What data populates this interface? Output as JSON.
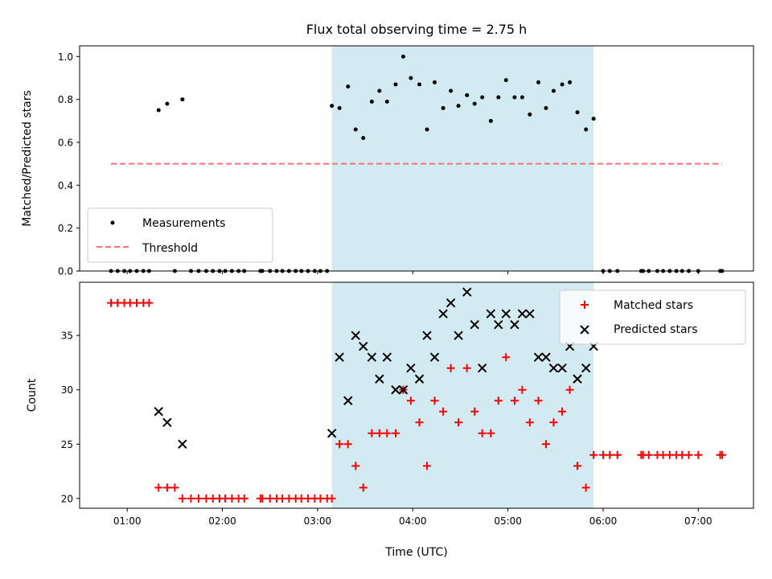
{
  "chart_data": [
    {
      "type": "scatter",
      "title": "Flux total observing time = 2.75 h",
      "ylabel": "Matched/Predicted stars",
      "xlabel": "",
      "x_unit": "hours (UTC)",
      "xlim": [
        0.5,
        7.58
      ],
      "ylim": [
        0.0,
        1.05
      ],
      "yticks": [
        0.0,
        0.2,
        0.4,
        0.6,
        0.8,
        1.0
      ],
      "ytick_labels": [
        "0.0",
        "0.2",
        "0.4",
        "0.6",
        "0.8",
        "1.0"
      ],
      "grid": false,
      "legend": "lower-left",
      "shaded_region": [
        3.15,
        5.9
      ],
      "shade_color": "#add8e6",
      "series": [
        {
          "name": "Measurements",
          "color": "#000000",
          "marker": "dot",
          "x": [
            0.83,
            0.9,
            0.97,
            1.03,
            1.1,
            1.17,
            1.23,
            1.33,
            1.42,
            1.5,
            1.58,
            1.67,
            1.75,
            1.83,
            1.9,
            1.97,
            2.03,
            2.1,
            2.17,
            2.23,
            2.4,
            2.42,
            2.5,
            2.57,
            2.63,
            2.7,
            2.77,
            2.83,
            2.9,
            2.97,
            3.03,
            3.1,
            3.15,
            3.23,
            3.32,
            3.4,
            3.48,
            3.57,
            3.65,
            3.73,
            3.82,
            3.9,
            3.98,
            4.07,
            4.15,
            4.23,
            4.32,
            4.4,
            4.48,
            4.57,
            4.65,
            4.73,
            4.82,
            4.9,
            4.98,
            5.07,
            5.15,
            5.23,
            5.32,
            5.4,
            5.48,
            5.57,
            5.65,
            5.73,
            5.82,
            5.9,
            6.0,
            6.07,
            6.15,
            6.4,
            6.42,
            6.48,
            6.57,
            6.63,
            6.7,
            6.77,
            6.83,
            6.9,
            7.0,
            7.23,
            7.25
          ],
          "y": [
            0,
            0,
            0,
            0,
            0,
            0,
            0,
            0.75,
            0.78,
            0,
            0.8,
            0,
            0,
            0,
            0,
            0,
            0,
            0,
            0,
            0,
            0,
            0,
            0,
            0,
            0,
            0,
            0,
            0,
            0,
            0,
            0,
            0,
            0.77,
            0.76,
            0.86,
            0.66,
            0.62,
            0.79,
            0.84,
            0.79,
            0.87,
            1.0,
            0.9,
            0.87,
            0.66,
            0.88,
            0.76,
            0.84,
            0.77,
            0.82,
            0.78,
            0.81,
            0.7,
            0.81,
            0.89,
            0.81,
            0.81,
            0.73,
            0.88,
            0.76,
            0.84,
            0.87,
            0.88,
            0.74,
            0.66,
            0.71,
            0,
            0,
            0,
            0,
            0,
            0,
            0,
            0,
            0,
            0,
            0,
            0,
            0,
            0,
            0
          ]
        },
        {
          "name": "Threshold",
          "color": "#ff7070",
          "style": "dashed",
          "x": [
            0.83,
            7.25
          ],
          "y": [
            0.5,
            0.5
          ]
        }
      ]
    },
    {
      "type": "scatter",
      "title": "",
      "ylabel": "Count",
      "xlabel": "Time (UTC)",
      "x_unit": "hours (UTC)",
      "xlim": [
        0.5,
        7.58
      ],
      "ylim": [
        19.1,
        39.9
      ],
      "xticks": [
        1,
        2,
        3,
        4,
        5,
        6,
        7
      ],
      "xtick_labels": [
        "01:00",
        "02:00",
        "03:00",
        "04:00",
        "05:00",
        "06:00",
        "07:00"
      ],
      "yticks": [
        20,
        25,
        30,
        35
      ],
      "ytick_labels": [
        "20",
        "25",
        "30",
        "35"
      ],
      "grid": false,
      "legend": "top-right",
      "shaded_region": [
        3.15,
        5.9
      ],
      "shade_color": "#add8e6",
      "series": [
        {
          "name": "Matched stars",
          "color": "#ff0000",
          "marker": "plus",
          "x": [
            0.83,
            0.9,
            0.97,
            1.03,
            1.1,
            1.17,
            1.23,
            1.33,
            1.42,
            1.5,
            1.58,
            1.67,
            1.75,
            1.83,
            1.9,
            1.97,
            2.03,
            2.1,
            2.17,
            2.23,
            2.4,
            2.42,
            2.5,
            2.57,
            2.63,
            2.7,
            2.77,
            2.83,
            2.9,
            2.97,
            3.03,
            3.1,
            3.15,
            3.23,
            3.32,
            3.4,
            3.48,
            3.57,
            3.65,
            3.73,
            3.82,
            3.9,
            3.98,
            4.07,
            4.15,
            4.23,
            4.32,
            4.4,
            4.48,
            4.57,
            4.65,
            4.73,
            4.82,
            4.9,
            4.98,
            5.07,
            5.15,
            5.23,
            5.32,
            5.4,
            5.48,
            5.57,
            5.65,
            5.73,
            5.82,
            5.9,
            6.0,
            6.07,
            6.15,
            6.4,
            6.42,
            6.48,
            6.57,
            6.63,
            6.7,
            6.77,
            6.83,
            6.9,
            7.0,
            7.23,
            7.25
          ],
          "y": [
            38,
            38,
            38,
            38,
            38,
            38,
            38,
            21,
            21,
            21,
            20,
            20,
            20,
            20,
            20,
            20,
            20,
            20,
            20,
            20,
            20,
            20,
            20,
            20,
            20,
            20,
            20,
            20,
            20,
            20,
            20,
            20,
            20,
            25,
            25,
            23,
            21,
            26,
            26,
            26,
            26,
            30,
            29,
            27,
            23,
            29,
            28,
            32,
            27,
            32,
            28,
            26,
            26,
            29,
            33,
            29,
            30,
            27,
            29,
            25,
            27,
            28,
            30,
            23,
            21,
            24,
            24,
            24,
            24,
            24,
            24,
            24,
            24,
            24,
            24,
            24,
            24,
            24,
            24,
            24,
            24
          ]
        },
        {
          "name": "Predicted stars",
          "color": "#000000",
          "marker": "x",
          "x": [
            1.33,
            1.42,
            1.58,
            3.15,
            3.23,
            3.32,
            3.4,
            3.48,
            3.57,
            3.65,
            3.73,
            3.82,
            3.9,
            3.98,
            4.07,
            4.15,
            4.23,
            4.32,
            4.4,
            4.48,
            4.57,
            4.65,
            4.73,
            4.82,
            4.9,
            4.98,
            5.07,
            5.15,
            5.23,
            5.32,
            5.4,
            5.48,
            5.57,
            5.65,
            5.73,
            5.82,
            5.9
          ],
          "y": [
            28,
            27,
            25,
            26,
            33,
            29,
            35,
            34,
            33,
            31,
            33,
            30,
            30,
            32,
            31,
            35,
            33,
            37,
            38,
            35,
            39,
            36,
            32,
            37,
            36,
            37,
            36,
            37,
            37,
            33,
            33,
            32,
            32,
            34,
            31,
            32,
            34
          ]
        }
      ]
    }
  ]
}
